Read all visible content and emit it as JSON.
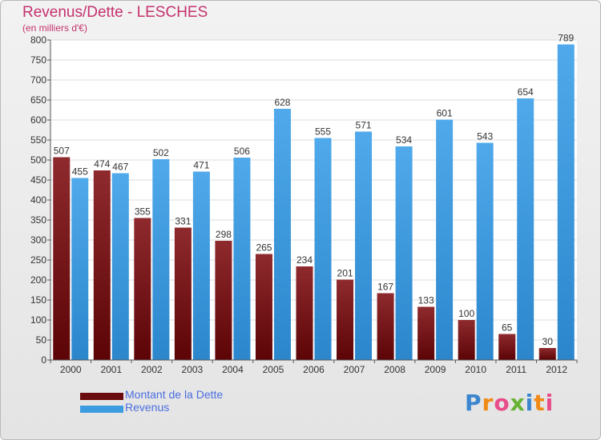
{
  "chart_data": {
    "type": "bar",
    "title": "Revenus/Dette - LESCHES",
    "subtitle": "(en milliers d'€)",
    "categories": [
      "2000",
      "2001",
      "2002",
      "2003",
      "2004",
      "2005",
      "2006",
      "2007",
      "2008",
      "2009",
      "2010",
      "2011",
      "2012"
    ],
    "series": [
      {
        "name": "Montant de la Dette",
        "color": "#7a1418",
        "values": [
          507,
          474,
          355,
          331,
          298,
          265,
          234,
          201,
          167,
          133,
          100,
          65,
          30
        ]
      },
      {
        "name": "Revenus",
        "color": "#3d9be0",
        "values": [
          455,
          467,
          502,
          471,
          506,
          628,
          555,
          571,
          534,
          601,
          543,
          654,
          789
        ]
      }
    ],
    "ylim": [
      0,
      800
    ],
    "yticks": [
      0,
      50,
      100,
      150,
      200,
      250,
      300,
      350,
      400,
      450,
      500,
      550,
      600,
      650,
      700,
      750,
      800
    ],
    "grid": true,
    "legend": "bottom-left"
  },
  "logo": {
    "text": "Proxiti",
    "letters": [
      {
        "ch": "P",
        "color": "#3b86cf"
      },
      {
        "ch": "r",
        "color": "#f08a16"
      },
      {
        "ch": "o",
        "color": "#e84c8a"
      },
      {
        "ch": "x",
        "color": "#66b232"
      },
      {
        "ch": "i",
        "color": "#3b86cf"
      },
      {
        "ch": "t",
        "color": "#f08a16"
      },
      {
        "ch": "i",
        "color": "#e84c8a"
      }
    ]
  }
}
